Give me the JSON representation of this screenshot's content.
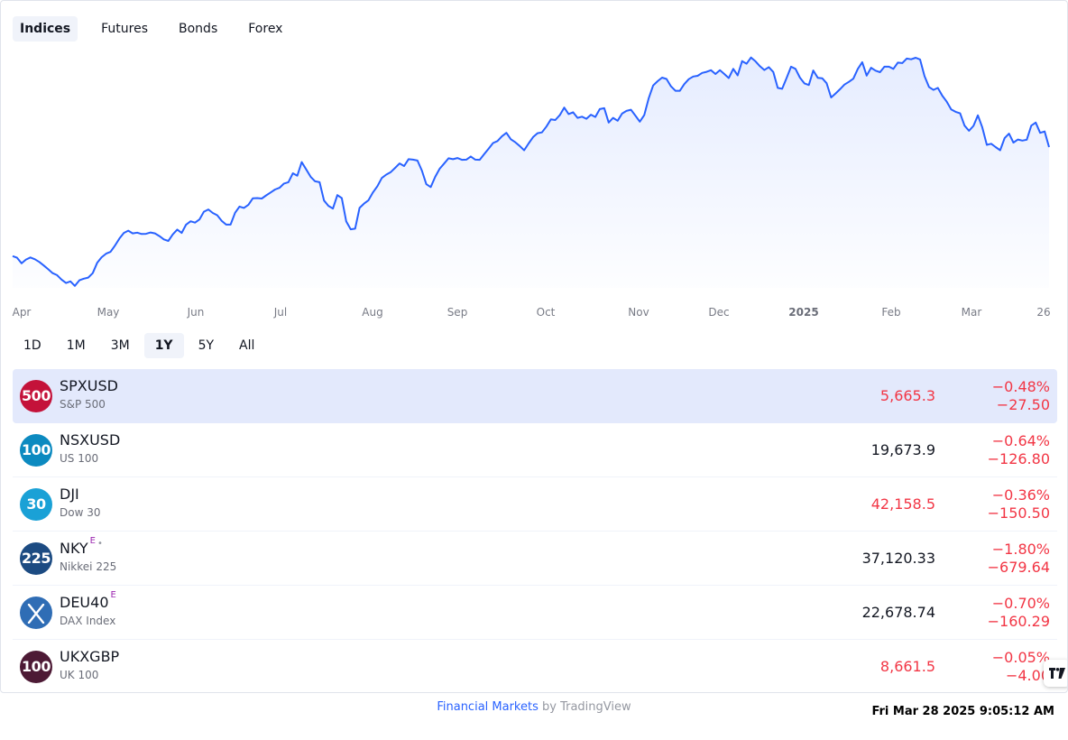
{
  "tabs": [
    "Indices",
    "Futures",
    "Bonds",
    "Forex"
  ],
  "active_tab": 0,
  "ranges": [
    "1D",
    "1M",
    "3M",
    "1Y",
    "5Y",
    "All"
  ],
  "active_range": 3,
  "colors": {
    "line": "#2962ff",
    "down": "#f23645",
    "neutral": "#131722"
  },
  "chart_data": {
    "type": "area",
    "x_ticks": [
      "Apr",
      "May",
      "Jun",
      "Jul",
      "Aug",
      "Sep",
      "Oct",
      "Nov",
      "Dec",
      "2025",
      "Feb",
      "Mar",
      "26"
    ],
    "series": [
      {
        "values": [
          5202,
          5195,
          5170,
          5187,
          5196,
          5188,
          5176,
          5160,
          5143,
          5126,
          5117,
          5097,
          5082,
          5089,
          5069,
          5094,
          5101,
          5106,
          5126,
          5172,
          5197,
          5213,
          5221,
          5249,
          5281,
          5306,
          5316,
          5304,
          5307,
          5301,
          5302,
          5308,
          5304,
          5292,
          5277,
          5270,
          5299,
          5321,
          5306,
          5343,
          5358,
          5352,
          5366,
          5401,
          5411,
          5395,
          5385,
          5360,
          5343,
          5343,
          5396,
          5424,
          5418,
          5432,
          5461,
          5462,
          5460,
          5474,
          5487,
          5500,
          5508,
          5527,
          5533,
          5573,
          5562,
          5623,
          5590,
          5557,
          5537,
          5533,
          5451,
          5427,
          5415,
          5475,
          5462,
          5358,
          5322,
          5325,
          5418,
          5437,
          5452,
          5487,
          5515,
          5552,
          5567,
          5578,
          5597,
          5617,
          5605,
          5636,
          5634,
          5630,
          5585,
          5524,
          5511,
          5557,
          5593,
          5616,
          5640,
          5636,
          5641,
          5633,
          5634,
          5648,
          5634,
          5633,
          5658,
          5683,
          5708,
          5717,
          5738,
          5754,
          5725,
          5712,
          5695,
          5676,
          5706,
          5735,
          5752,
          5756,
          5782,
          5814,
          5811,
          5833,
          5867,
          5838,
          5846,
          5821,
          5826,
          5817,
          5835,
          5825,
          5860,
          5864,
          5800,
          5821,
          5808,
          5840,
          5852,
          5857,
          5831,
          5804,
          5833,
          5909,
          5966,
          5985,
          6001,
          5995,
          5962,
          5942,
          5942,
          5972,
          5994,
          6006,
          6009,
          6022,
          6027,
          6034,
          6017,
          6034,
          6017,
          5999,
          6040,
          6011,
          6075,
          6063,
          6091,
          6074,
          6052,
          6035,
          6048,
          6026,
          5955,
          5951,
          6000,
          6050,
          6040,
          6001,
          5975,
          5968,
          6033,
          6000,
          5998,
          5976,
          5912,
          5930,
          5949,
          5970,
          5982,
          5996,
          6040,
          6070,
          6010,
          6045,
          6032,
          6025,
          6050,
          6050,
          6040,
          6068,
          6066,
          6086,
          6083,
          6090,
          6082,
          6008,
          5959,
          5946,
          5955,
          5920,
          5893,
          5859,
          5848,
          5841,
          5786,
          5763,
          5785,
          5832,
          5778,
          5700,
          5705,
          5690,
          5676,
          5730,
          5750,
          5710,
          5724,
          5719,
          5723,
          5786,
          5800,
          5754,
          5760,
          5690
        ]
      }
    ],
    "x_range": [
      "2024-03-28",
      "2025-03-26"
    ]
  },
  "rows": [
    {
      "logo": "500",
      "logo_color": "#c4123a",
      "symbol": "SPXUSD",
      "sup": "",
      "dot": "",
      "name": "S&P 500",
      "price": "5,665.3",
      "price_dir": "down",
      "pct": "−0.48%",
      "abs": "−27.50"
    },
    {
      "logo": "100",
      "logo_color": "#0c8ac0",
      "symbol": "NSXUSD",
      "sup": "",
      "dot": "",
      "name": "US 100",
      "price": "19,673.9",
      "price_dir": "neutral",
      "pct": "−0.64%",
      "abs": "−126.80"
    },
    {
      "logo": "30",
      "logo_color": "#1aa1d6",
      "symbol": "DJI",
      "sup": "",
      "dot": "",
      "name": "Dow 30",
      "price": "42,158.5",
      "price_dir": "down",
      "pct": "−0.36%",
      "abs": "−150.50"
    },
    {
      "logo": "225",
      "logo_color": "#1c4b82",
      "symbol": "NKY",
      "sup": "E",
      "dot": "•",
      "name": "Nikkei 225",
      "price": "37,120.33",
      "price_dir": "neutral",
      "pct": "−1.80%",
      "abs": "−679.64"
    },
    {
      "logo": "",
      "logo_color": "#2f6db5",
      "logo_icon": "dax-x-icon",
      "symbol": "DEU40",
      "sup": "E",
      "dot": "",
      "name": "DAX Index",
      "price": "22,678.74",
      "price_dir": "neutral",
      "pct": "−0.70%",
      "abs": "−160.29"
    },
    {
      "logo": "100",
      "logo_color": "#4d1a35",
      "symbol": "UKXGBP",
      "sup": "",
      "dot": "",
      "name": "UK 100",
      "price": "8,661.5",
      "price_dir": "down",
      "pct": "−0.05%",
      "abs": "−4.00"
    }
  ],
  "badge": "TV",
  "footer": {
    "brand": "Financial Markets",
    "by": " by TradingView"
  },
  "clock": "Fri Mar 28 2025 9:05:12 AM"
}
